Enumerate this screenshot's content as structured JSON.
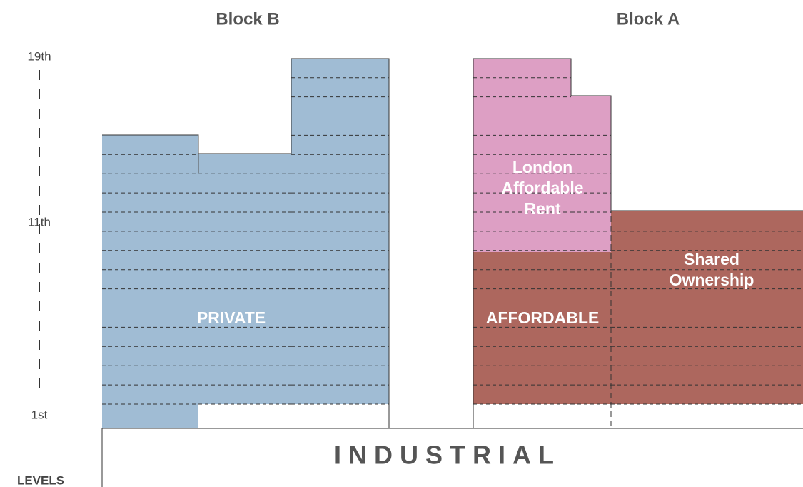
{
  "blocks": [
    {
      "title": "Block B"
    },
    {
      "title": "Block A"
    }
  ],
  "levels": {
    "top": "19th",
    "middle": "11th",
    "bottom": "1st",
    "caption": "LEVELS"
  },
  "zones": {
    "private": "PRIVATE",
    "london_affordable_rent": [
      "London",
      "Affordable",
      "Rent"
    ],
    "affordable": "AFFORDABLE",
    "shared_ownership": [
      "Shared",
      "Ownership"
    ]
  },
  "base": "INDUSTRIAL"
}
